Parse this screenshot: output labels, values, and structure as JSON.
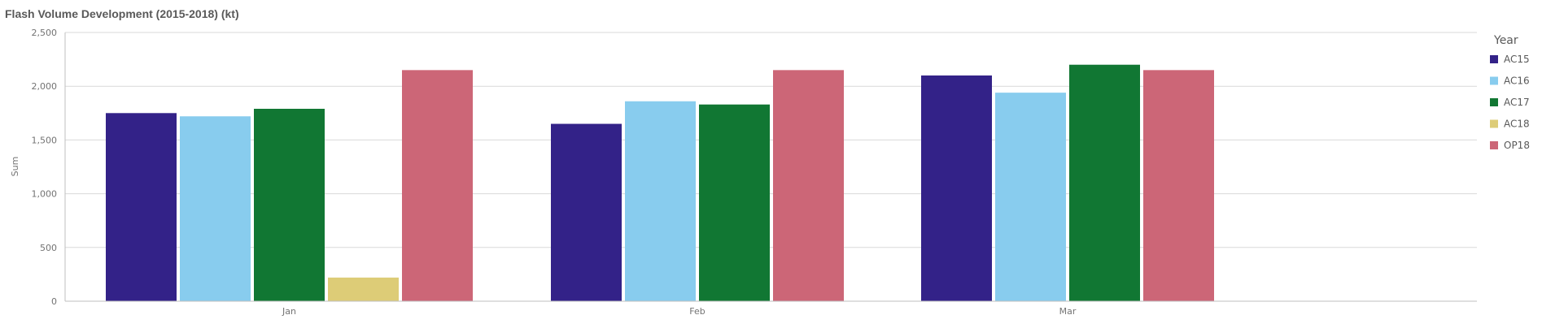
{
  "chart_data": {
    "type": "bar",
    "title": "Flash Volume Development (2015-2018) (kt)",
    "xlabel": "",
    "ylabel": "Sum",
    "ylim": [
      0,
      2500
    ],
    "yticks": [
      0,
      500,
      1000,
      1500,
      2000,
      2500
    ],
    "ytick_labels": [
      "0",
      "500",
      "1,000",
      "1,500",
      "2,000",
      "2,500"
    ],
    "grid": true,
    "legend": {
      "title": "Year",
      "placement": "right"
    },
    "categories": [
      "Jan",
      "Feb",
      "Mar"
    ],
    "series": [
      {
        "name": "AC15",
        "color": "#332288",
        "values": [
          1750,
          1650,
          2100
        ]
      },
      {
        "name": "AC16",
        "color": "#88ccee",
        "values": [
          1720,
          1860,
          1940
        ]
      },
      {
        "name": "AC17",
        "color": "#117733",
        "values": [
          1790,
          1830,
          2200
        ]
      },
      {
        "name": "AC18",
        "color": "#ddcc77",
        "values": [
          220,
          null,
          null
        ]
      },
      {
        "name": "OP18",
        "color": "#cc6677",
        "values": [
          2150,
          2150,
          2150
        ]
      }
    ]
  }
}
